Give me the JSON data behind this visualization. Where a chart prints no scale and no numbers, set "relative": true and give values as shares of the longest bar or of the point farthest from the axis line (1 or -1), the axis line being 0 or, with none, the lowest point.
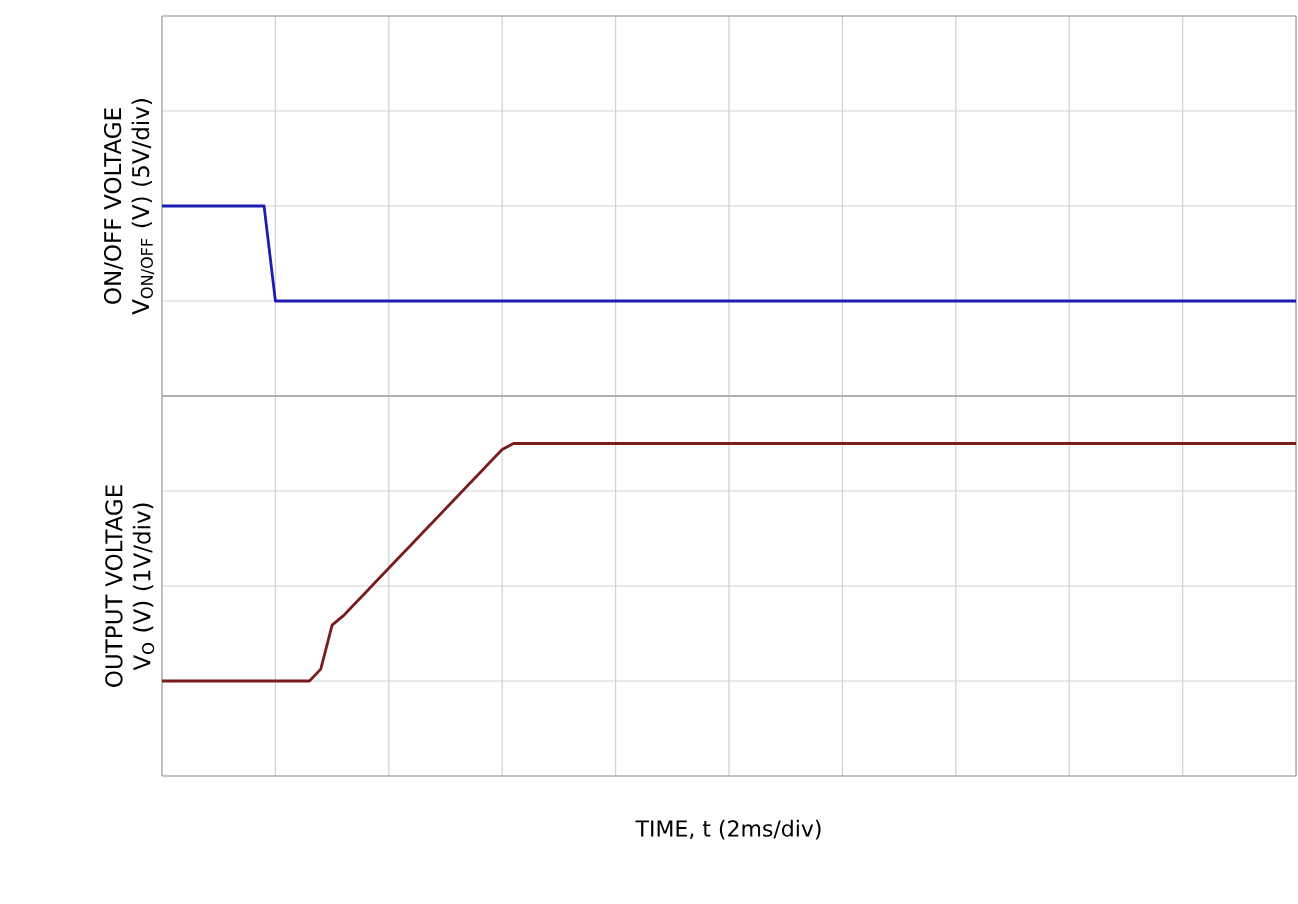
{
  "chart_data": [
    {
      "type": "line",
      "relative": true,
      "ylabel": "ON/OFF VOLTAGE V$_{ON/OFF}$ (V) (5V/div)",
      "grid": true,
      "categories": [
        null,
        null,
        null,
        null,
        null,
        null,
        null,
        null,
        null,
        null,
        null,
        null,
        null,
        null,
        null,
        null,
        null,
        null,
        null,
        null,
        null,
        null,
        null,
        null,
        null,
        null,
        null,
        null,
        null,
        null,
        null,
        null,
        null,
        null,
        null,
        null,
        null,
        null,
        null,
        null,
        null,
        null,
        null,
        null,
        null,
        null,
        null,
        null,
        null,
        null,
        null,
        null,
        null,
        null,
        null,
        null,
        null,
        null,
        null,
        null,
        null,
        null,
        null,
        null,
        null,
        null,
        null,
        null,
        null,
        null,
        null,
        null,
        null,
        null,
        null,
        null,
        null,
        null,
        null,
        null,
        null,
        null,
        null,
        null,
        null,
        null,
        null,
        null,
        null,
        null,
        null,
        null,
        null,
        null,
        null,
        null,
        null,
        null,
        null,
        null,
        null
      ],
      "series": [
        {
          "color": "#1c1cb0",
          "values": [
            1,
            1,
            1,
            1,
            1,
            1,
            1,
            1,
            1,
            1,
            0,
            0,
            0,
            0,
            0,
            0,
            0,
            0,
            0,
            0,
            0,
            0,
            0,
            0,
            0,
            0,
            0,
            0,
            0,
            0,
            0,
            0,
            0,
            0,
            0,
            0,
            0,
            0,
            0,
            0,
            0,
            0,
            0,
            0,
            0,
            0,
            0,
            0,
            0,
            0,
            0,
            0,
            0,
            0,
            0,
            0,
            0,
            0,
            0,
            0,
            0,
            0,
            0,
            0,
            0,
            0,
            0,
            0,
            0,
            0,
            0,
            0,
            0,
            0,
            0,
            0,
            0,
            0,
            0,
            0,
            0,
            0,
            0,
            0,
            0,
            0,
            0,
            0,
            0,
            0,
            0,
            0,
            0,
            0,
            0,
            0,
            0,
            0,
            0,
            0,
            0
          ]
        }
      ]
    },
    {
      "type": "line",
      "relative": true,
      "xlabel": "TIME, t (2ms/div)",
      "ylabel": "OUTPUT VOLTAGE V$_{O}$ (V) (1V/div)",
      "grid": true,
      "categories": [
        null,
        null,
        null,
        null,
        null,
        null,
        null,
        null,
        null,
        null,
        null,
        null,
        null,
        null,
        null,
        null,
        null,
        null,
        null,
        null,
        null,
        null,
        null,
        null,
        null,
        null,
        null,
        null,
        null,
        null,
        null,
        null,
        null,
        null,
        null,
        null,
        null,
        null,
        null,
        null,
        null,
        null,
        null,
        null,
        null,
        null,
        null,
        null,
        null,
        null,
        null,
        null,
        null,
        null,
        null,
        null,
        null,
        null,
        null,
        null,
        null,
        null,
        null,
        null,
        null,
        null,
        null,
        null,
        null,
        null,
        null,
        null,
        null,
        null,
        null,
        null,
        null,
        null,
        null,
        null,
        null,
        null,
        null,
        null,
        null,
        null,
        null,
        null,
        null,
        null,
        null,
        null,
        null,
        null,
        null,
        null,
        null,
        null,
        null,
        null,
        null
      ],
      "series": [
        {
          "color": "#7a1c1c",
          "values": [
            0,
            0,
            0,
            0,
            0,
            0,
            0,
            0,
            0,
            0,
            0,
            0,
            0,
            0,
            0.05,
            0.235,
            0.275,
            0.325,
            0.375,
            0.425,
            0.475,
            0.525,
            0.575,
            0.625,
            0.675,
            0.725,
            0.775,
            0.825,
            0.875,
            0.925,
            0.975,
            1,
            1,
            1,
            1,
            1,
            1,
            1,
            1,
            1,
            1,
            1,
            1,
            1,
            1,
            1,
            1,
            1,
            1,
            1,
            1,
            1,
            1,
            1,
            1,
            1,
            1,
            1,
            1,
            1,
            1,
            1,
            1,
            1,
            1,
            1,
            1,
            1,
            1,
            1,
            1,
            1,
            1,
            1,
            1,
            1,
            1,
            1,
            1,
            1,
            1,
            1,
            1,
            1,
            1,
            1,
            1,
            1,
            1,
            1,
            1,
            1,
            1,
            1,
            1,
            1,
            1,
            1,
            1,
            1,
            1
          ]
        }
      ]
    }
  ]
}
